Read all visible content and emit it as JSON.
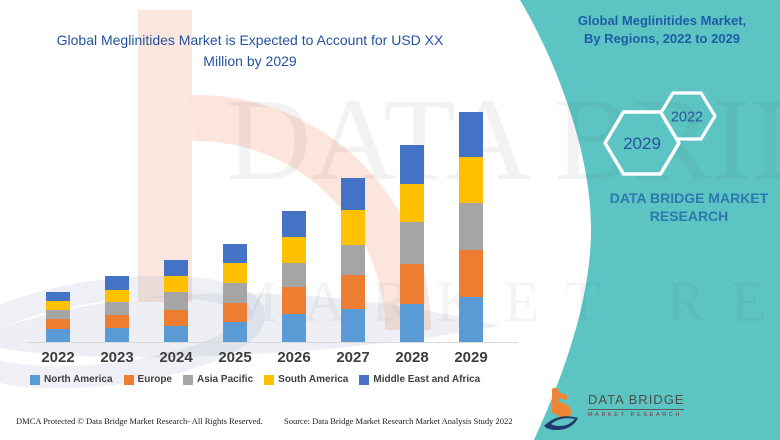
{
  "main_title": {
    "line1": "Global Meglinitides Market is Expected to Account for USD XX",
    "line2": "Million by 2029"
  },
  "panel_title": {
    "line1": "Global Meglinitides Market,",
    "line2": "By Regions, 2022 to 2029"
  },
  "side_panel": {
    "hexagons": [
      {
        "label": "2029"
      },
      {
        "label": "2022"
      }
    ],
    "brand_caption": {
      "line1": "DATA BRIDGE MARKET",
      "line2": "RESEARCH"
    }
  },
  "watermark": {
    "line1": "DATA BRIDGE",
    "line2": "MARKET RESEARCH"
  },
  "footer": {
    "left": "DMCA Protected © Data Bridge Market Research- All Rights Reserved.",
    "right": "Source: Data Bridge Market Research Market Analysis Study 2022"
  },
  "logo": {
    "name": "DATA BRIDGE",
    "subtitle": "MARKET RESEARCH"
  },
  "colors": {
    "teal_panel": "#5cc5c3",
    "main_title_blue": "#24539f",
    "panel_title_blue": "#1f5ca6",
    "hexagon_label_blue": "#27569b",
    "caption_blue": "#2a6db1",
    "axis_line_gray": "#d9d9d9",
    "axis_label_gray": "#3d3d3d",
    "logo_orange": "#ef8532",
    "logo_navy": "#20386b",
    "logo_subtitle_red": "#8a2a2a"
  },
  "chart_data": {
    "type": "bar",
    "stacked": true,
    "title": "Global Meglinitides Market is Expected to Account for USD XX Million by 2029",
    "categories": [
      "2022",
      "2023",
      "2024",
      "2025",
      "2026",
      "2027",
      "2028",
      "2029"
    ],
    "series": [
      {
        "name": "North America",
        "color": "#5B9BD5",
        "values": [
          13,
          14,
          16,
          20,
          28,
          33,
          38,
          45
        ]
      },
      {
        "name": "Europe",
        "color": "#ED7D31",
        "values": [
          10,
          13,
          16,
          19,
          27,
          34,
          40,
          47
        ]
      },
      {
        "name": "Asia Pacific",
        "color": "#A5A5A5",
        "values": [
          9,
          13,
          18,
          20,
          24,
          30,
          42,
          47
        ]
      },
      {
        "name": "South America",
        "color": "#FFC000",
        "values": [
          9,
          12,
          16,
          20,
          26,
          35,
          38,
          46
        ]
      },
      {
        "name": "Middle East and Africa",
        "color": "#4472C4",
        "values": [
          9,
          14,
          16,
          19,
          26,
          32,
          39,
          45
        ]
      }
    ],
    "totals": [
      50,
      66,
      82,
      98,
      131,
      164,
      197,
      230
    ],
    "ylim": [
      0,
      240
    ],
    "y_axis_shown": false,
    "grid": false,
    "legend_position": "bottom"
  }
}
